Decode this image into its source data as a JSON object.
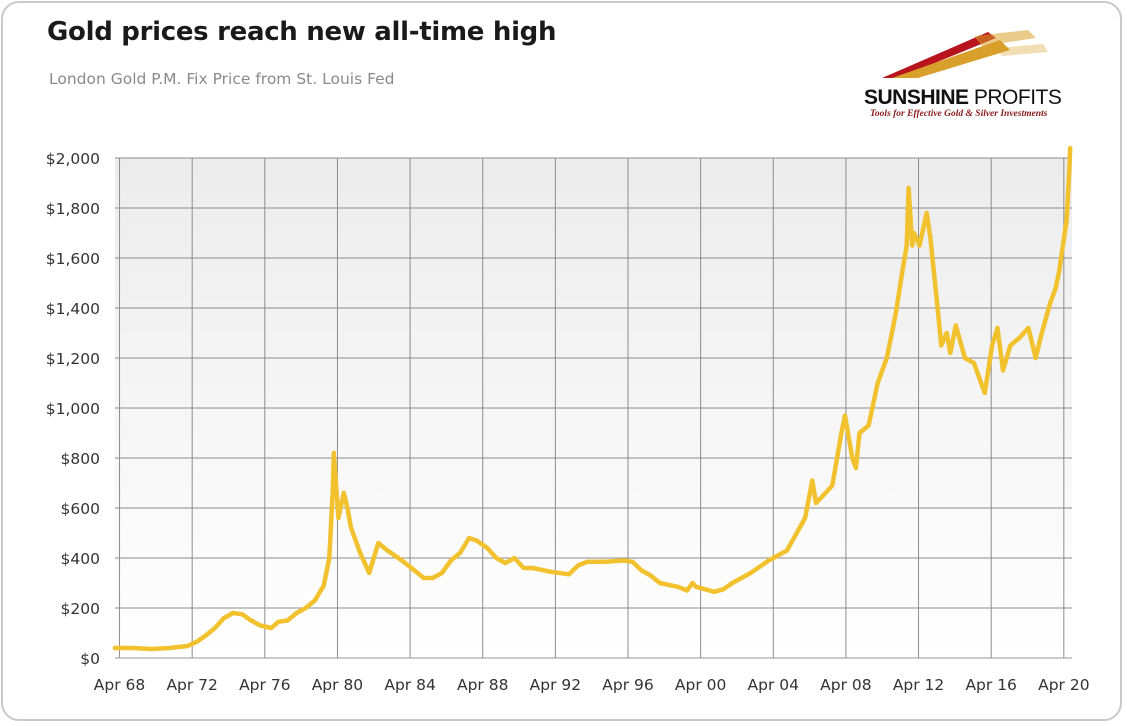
{
  "header": {
    "title": "Gold prices reach new all-time high",
    "subtitle": "London Gold P.M. Fix Price from St. Louis Fed"
  },
  "logo": {
    "brand_bold": "SUNSHINE",
    "brand_light": " PROFITS",
    "tagline": "Tools for Effective Gold & Silver Investments"
  },
  "colors": {
    "line": "#f2c12e",
    "plot_bg_top": "#ececec",
    "plot_bg_bottom": "#ffffff",
    "grid": "#8c8c8c",
    "text": "#333333",
    "logo_red": "#b8141e",
    "logo_gold": "#d8a02a"
  },
  "chart_data": {
    "type": "line",
    "title": "Gold prices reach new all-time high",
    "subtitle": "London Gold P.M. Fix Price from St. Louis Fed",
    "xlabel": "",
    "ylabel": "",
    "ylim": [
      0,
      2000
    ],
    "xlim": [
      1968.0,
      2020.7
    ],
    "grid": true,
    "legend": "none",
    "y_ticks": [
      0,
      200,
      400,
      600,
      800,
      1000,
      1200,
      1400,
      1600,
      1800,
      2000
    ],
    "y_tick_labels": [
      "$0",
      "$200",
      "$400",
      "$600",
      "$800",
      "$1,000",
      "$1,200",
      "$1,400",
      "$1,600",
      "$1,800",
      "$2,000"
    ],
    "x_tick_labels": [
      "Apr 68",
      "Apr 72",
      "Apr 76",
      "Apr 80",
      "Apr 84",
      "Apr 88",
      "Apr 92",
      "Apr 96",
      "Apr 00",
      "Apr 04",
      "Apr 08",
      "Apr 12",
      "Apr 16",
      "Apr 20"
    ],
    "x_ticks": [
      1968.25,
      1972.25,
      1976.25,
      1980.25,
      1984.25,
      1988.25,
      1992.25,
      1996.25,
      2000.25,
      2004.25,
      2008.25,
      2012.25,
      2016.25,
      2020.25
    ],
    "series": [
      {
        "x": [
          1968.0,
          1969.0,
          1970.0,
          1971.0,
          1972.0,
          1972.5,
          1973.0,
          1973.5,
          1974.0,
          1974.5,
          1975.0,
          1975.5,
          1976.0,
          1976.6,
          1977.0,
          1977.5,
          1978.0,
          1978.5,
          1979.0,
          1979.5,
          1979.8,
          1980.0,
          1980.05,
          1980.3,
          1980.6,
          1980.8,
          1981.0,
          1981.5,
          1982.0,
          1982.5,
          1983.0,
          1983.4,
          1983.8,
          1984.5,
          1985.0,
          1985.5,
          1986.0,
          1986.5,
          1987.0,
          1987.5,
          1987.9,
          1988.5,
          1989.0,
          1989.5,
          1990.0,
          1990.5,
          1991.0,
          1992.0,
          1993.0,
          1993.5,
          1994.0,
          1995.0,
          1996.0,
          1996.5,
          1997.0,
          1997.5,
          1998.0,
          1999.0,
          1999.5,
          1999.8,
          2000.0,
          2001.0,
          2001.5,
          2002.0,
          2003.0,
          2004.0,
          2005.0,
          2006.0,
          2006.4,
          2006.6,
          2007.0,
          2007.5,
          2008.0,
          2008.2,
          2008.6,
          2008.8,
          2009.0,
          2009.5,
          2010.0,
          2010.5,
          2011.0,
          2011.3,
          2011.6,
          2011.7,
          2011.9,
          2012.0,
          2012.3,
          2012.7,
          2012.9,
          2013.3,
          2013.5,
          2013.8,
          2014.0,
          2014.3,
          2014.8,
          2015.3,
          2015.9,
          2016.3,
          2016.6,
          2016.9,
          2017.3,
          2017.8,
          2018.3,
          2018.7,
          2019.0,
          2019.5,
          2019.8,
          2020.0,
          2020.2,
          2020.4,
          2020.55,
          2020.6
        ],
        "values": [
          40,
          40,
          36,
          40,
          48,
          65,
          90,
          120,
          160,
          180,
          175,
          150,
          130,
          120,
          145,
          150,
          180,
          200,
          230,
          290,
          400,
          680,
          820,
          560,
          660,
          600,
          520,
          420,
          340,
          460,
          430,
          410,
          390,
          350,
          320,
          320,
          340,
          390,
          420,
          480,
          470,
          440,
          400,
          380,
          400,
          360,
          360,
          345,
          335,
          370,
          385,
          385,
          390,
          385,
          350,
          330,
          300,
          285,
          270,
          300,
          285,
          265,
          275,
          300,
          340,
          390,
          430,
          560,
          710,
          620,
          650,
          690,
          900,
          970,
          800,
          760,
          900,
          930,
          1100,
          1200,
          1380,
          1520,
          1650,
          1880,
          1650,
          1700,
          1650,
          1780,
          1680,
          1400,
          1250,
          1300,
          1220,
          1330,
          1200,
          1180,
          1060,
          1250,
          1320,
          1150,
          1250,
          1280,
          1320,
          1200,
          1290,
          1420,
          1480,
          1550,
          1650,
          1750,
          1950,
          2040
        ]
      }
    ]
  }
}
